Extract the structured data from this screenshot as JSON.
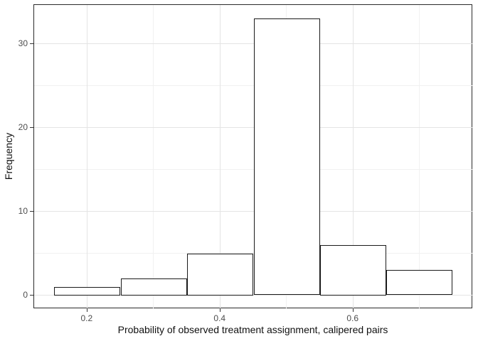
{
  "figure": {
    "background": "#ffffff",
    "panel_border_color": "#2b2b2b",
    "grid_major_color": "#e4e4e4",
    "grid_minor_color": "#f1f1f1",
    "bar_fill": "#ffffff",
    "bar_stroke": "#1a1a1a",
    "tick_color": "#333333",
    "tick_label_color": "#4d4d4d",
    "axis_title_color": "#111111"
  },
  "chart_data": {
    "type": "bar",
    "subtype": "histogram",
    "title": "",
    "xlabel": "Probability of observed treatment assignment, calipered pairs",
    "ylabel": "Frequency",
    "bin_width": 0.1,
    "bin_centers": [
      0.2,
      0.3,
      0.4,
      0.5,
      0.6,
      0.7
    ],
    "values": [
      1,
      2,
      5,
      33,
      6,
      3
    ],
    "xlim": [
      0.12,
      0.78
    ],
    "ylim": [
      -1.65,
      34.65
    ],
    "x_ticks": [
      0.2,
      0.4,
      0.6
    ],
    "x_tick_labels": [
      "0.2",
      "0.4",
      "0.6"
    ],
    "x_minor_breaks": [
      0.3,
      0.5,
      0.7
    ],
    "y_ticks": [
      0,
      10,
      20,
      30
    ],
    "y_tick_labels": [
      "0",
      "10",
      "20",
      "30"
    ],
    "y_minor_breaks": [
      5,
      15,
      25
    ],
    "grid": true,
    "legend": "none"
  }
}
